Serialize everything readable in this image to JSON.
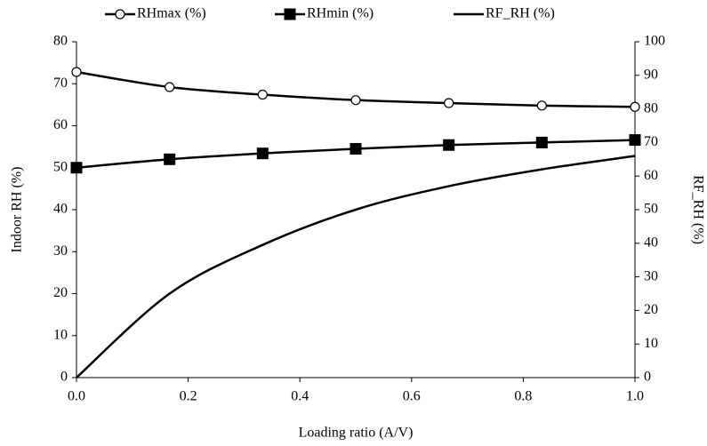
{
  "chart_data": {
    "type": "line",
    "x": [
      0,
      0.1667,
      0.3333,
      0.5,
      0.6667,
      0.8333,
      1.0
    ],
    "x_label": "Loading ratio (A/V)",
    "y_label": "Indoor RH (%)",
    "y2_label": "RF_RH (%)",
    "xlim": [
      0,
      1.0
    ],
    "xticks": [
      {
        "value": 0,
        "label": "0.0"
      },
      0.2,
      0.4,
      0.6,
      0.8,
      {
        "value": 1,
        "label": "1.0"
      }
    ],
    "ylim": [
      0,
      80
    ],
    "yticks": [
      0,
      10,
      20,
      30,
      40,
      50,
      60,
      70,
      80
    ],
    "y2lim": [
      0,
      100
    ],
    "y2ticks": [
      0,
      10,
      20,
      30,
      40,
      50,
      60,
      70,
      80,
      90,
      100
    ],
    "grid": false,
    "legend": "top",
    "series": [
      {
        "name": "RHmax (%)",
        "color": "#000000",
        "marker": "circle-open",
        "values": [
          72.8,
          69.2,
          67.4,
          66.1,
          65.4,
          64.8,
          64.5
        ]
      },
      {
        "name": "RHmin (%)",
        "color": "#000000",
        "marker": "square",
        "values": [
          50,
          52,
          53.4,
          54.5,
          55.4,
          56,
          56.6
        ]
      },
      {
        "name": "RF_RH (%)",
        "color": "#000000",
        "marker": "none",
        "axis": "y2",
        "values": [
          0,
          25,
          39.5,
          50,
          57,
          62,
          66
        ]
      }
    ]
  }
}
